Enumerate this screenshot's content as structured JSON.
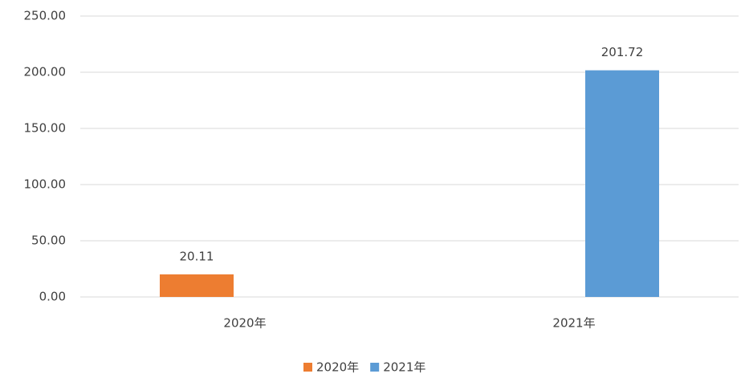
{
  "chart_data": {
    "type": "bar",
    "categories": [
      "2020年",
      "2021年"
    ],
    "series": [
      {
        "name": "2020年",
        "color": "#ed7d31",
        "values": [
          20.11,
          null
        ]
      },
      {
        "name": "2021年",
        "color": "#5b9bd5",
        "values": [
          null,
          201.72
        ]
      }
    ],
    "ylim": [
      0,
      250
    ],
    "yticks": [
      {
        "value": 0,
        "label": "0.00"
      },
      {
        "value": 50,
        "label": "50.00"
      },
      {
        "value": 100,
        "label": "100.00"
      },
      {
        "value": 150,
        "label": "150.00"
      },
      {
        "value": 200,
        "label": "200.00"
      },
      {
        "value": 250,
        "label": "250.00"
      }
    ],
    "grid": true,
    "legend": "bottom"
  }
}
